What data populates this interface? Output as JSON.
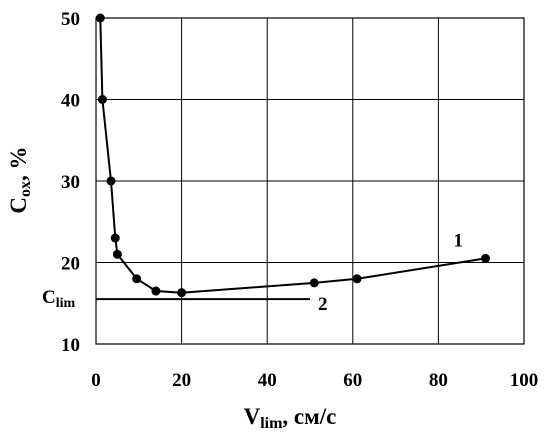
{
  "chart_data": {
    "type": "line",
    "xlim": [
      0,
      100
    ],
    "ylim": [
      10,
      50
    ],
    "x_ticks": [
      0,
      20,
      40,
      60,
      80,
      100
    ],
    "y_ticks": [
      10,
      20,
      30,
      40,
      50
    ],
    "grid": true,
    "xlabel": {
      "main": "V",
      "sub": "lim",
      "rest": ", см/с"
    },
    "ylabel": {
      "main": "C",
      "sub": "ox",
      "rest": ", %"
    },
    "series": [
      {
        "label": "1",
        "x": [
          1,
          1.5,
          3.5,
          4.5,
          5,
          9.5,
          14,
          20,
          51,
          61,
          91
        ],
        "y": [
          50,
          40,
          30,
          23,
          21,
          18,
          16.5,
          16.3,
          17.5,
          18,
          20.5
        ]
      }
    ],
    "reference_line": {
      "label": "2",
      "y": 15.5,
      "x": [
        0,
        50
      ]
    },
    "annotations": [
      {
        "text_main": "C",
        "text_sub": "lim",
        "x": 0,
        "y": 15.5
      }
    ]
  }
}
